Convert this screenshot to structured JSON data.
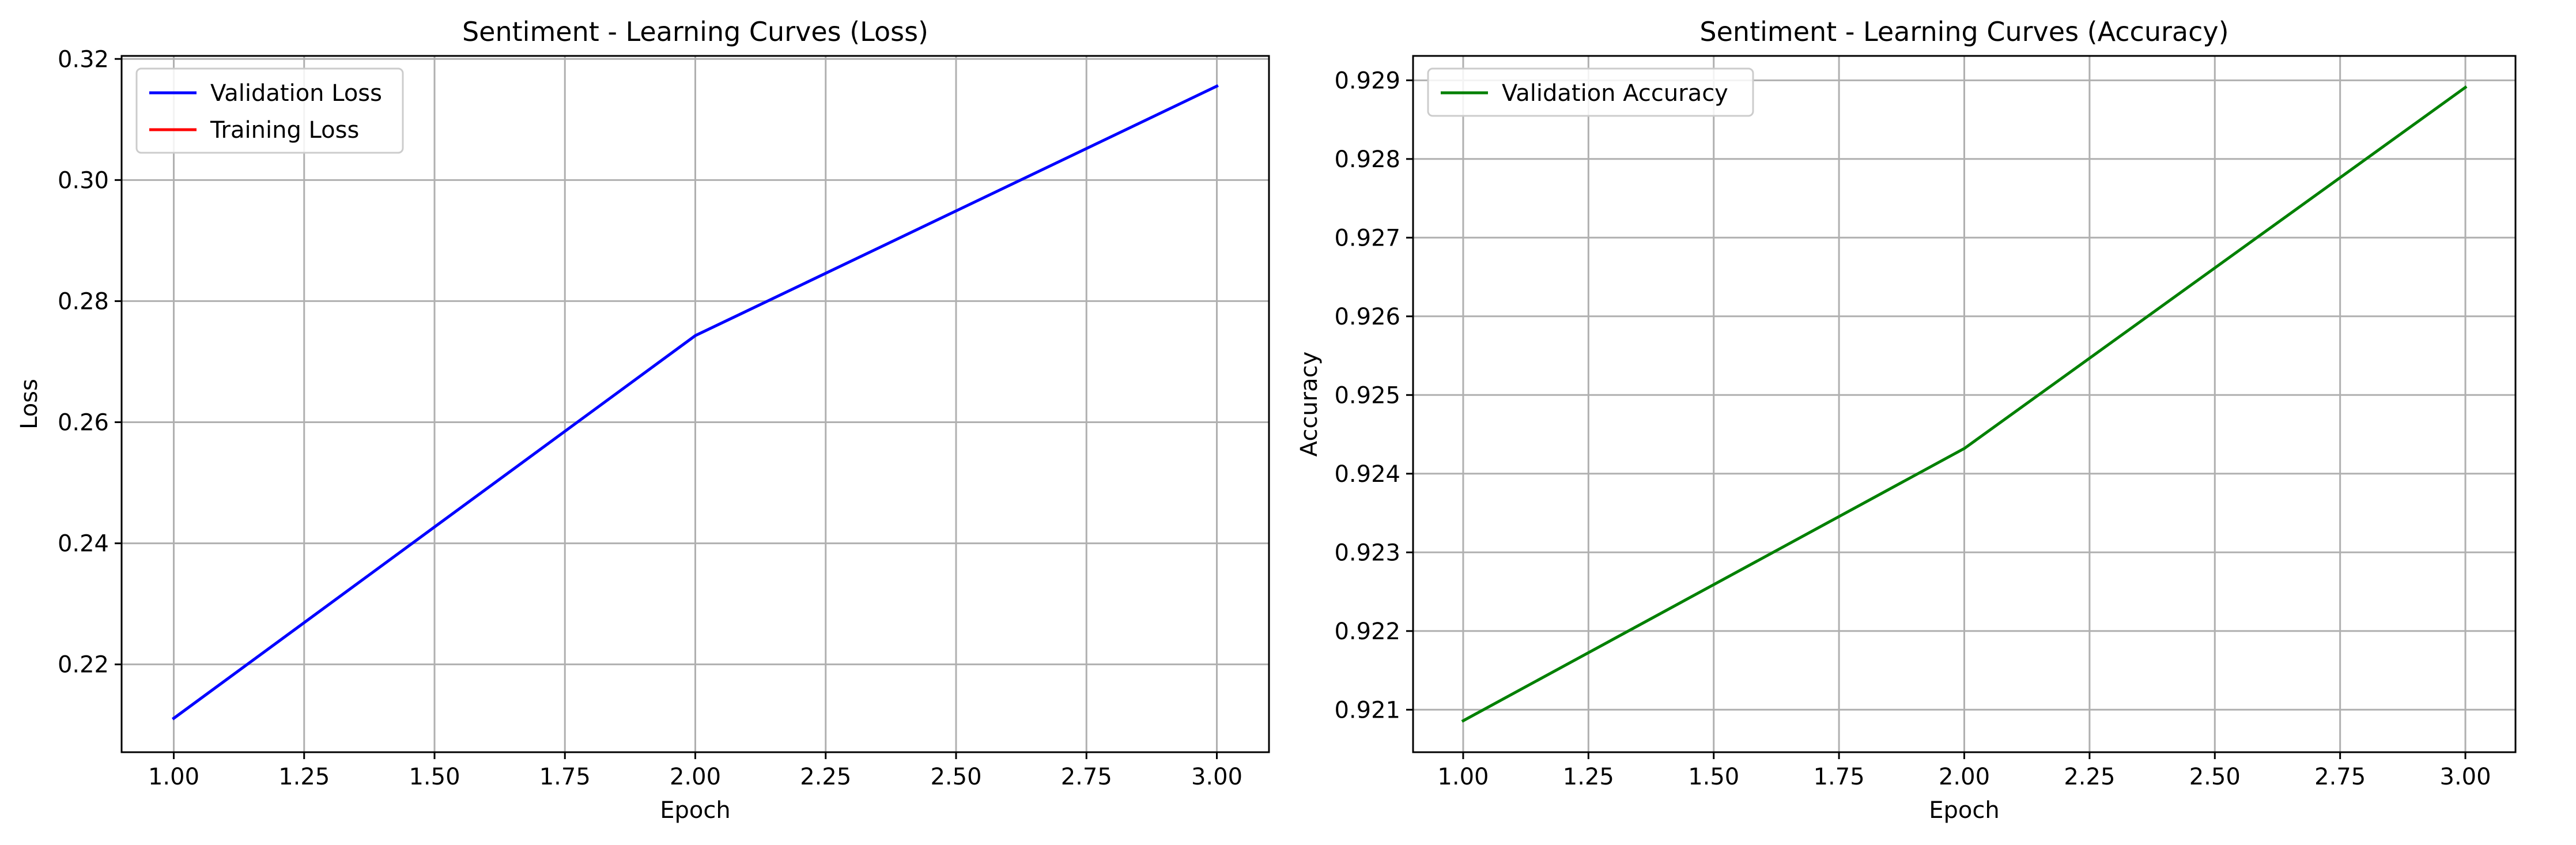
{
  "chart_data": [
    {
      "type": "line",
      "title": "Sentiment - Learning Curves (Loss)",
      "xlabel": "Epoch",
      "ylabel": "Loss",
      "xlim": [
        0.9,
        3.1
      ],
      "ylim": [
        0.2055,
        0.3205
      ],
      "xticks": [
        1.0,
        1.25,
        1.5,
        1.75,
        2.0,
        2.25,
        2.5,
        2.75,
        3.0
      ],
      "xtick_labels": [
        "1.00",
        "1.25",
        "1.50",
        "1.75",
        "2.00",
        "2.25",
        "2.50",
        "2.75",
        "3.00"
      ],
      "yticks": [
        0.22,
        0.24,
        0.26,
        0.28,
        0.3,
        0.32
      ],
      "ytick_labels": [
        "0.22",
        "0.24",
        "0.26",
        "0.28",
        "0.30",
        "0.32"
      ],
      "grid": true,
      "legend_position": "upper-left",
      "series": [
        {
          "name": "Validation Loss",
          "color": "#0000ff",
          "x": [
            1,
            2,
            3
          ],
          "y": [
            0.2111,
            0.2743,
            0.3155
          ]
        },
        {
          "name": "Training Loss",
          "color": "#ff0000",
          "x": [],
          "y": []
        }
      ]
    },
    {
      "type": "line",
      "title": "Sentiment - Learning Curves (Accuracy)",
      "xlabel": "Epoch",
      "ylabel": "Accuracy",
      "xlim": [
        0.9,
        3.1
      ],
      "ylim": [
        0.92046,
        0.92931
      ],
      "xticks": [
        1.0,
        1.25,
        1.5,
        1.75,
        2.0,
        2.25,
        2.5,
        2.75,
        3.0
      ],
      "xtick_labels": [
        "1.00",
        "1.25",
        "1.50",
        "1.75",
        "2.00",
        "2.25",
        "2.50",
        "2.75",
        "3.00"
      ],
      "yticks": [
        0.921,
        0.922,
        0.923,
        0.924,
        0.925,
        0.926,
        0.927,
        0.928,
        0.929
      ],
      "ytick_labels": [
        "0.921",
        "0.922",
        "0.923",
        "0.924",
        "0.925",
        "0.926",
        "0.927",
        "0.928",
        "0.929"
      ],
      "grid": true,
      "legend_position": "upper-left",
      "series": [
        {
          "name": "Validation Accuracy",
          "color": "#008000",
          "x": [
            1,
            2,
            3
          ],
          "y": [
            0.92086,
            0.92432,
            0.92891
          ]
        }
      ]
    }
  ]
}
